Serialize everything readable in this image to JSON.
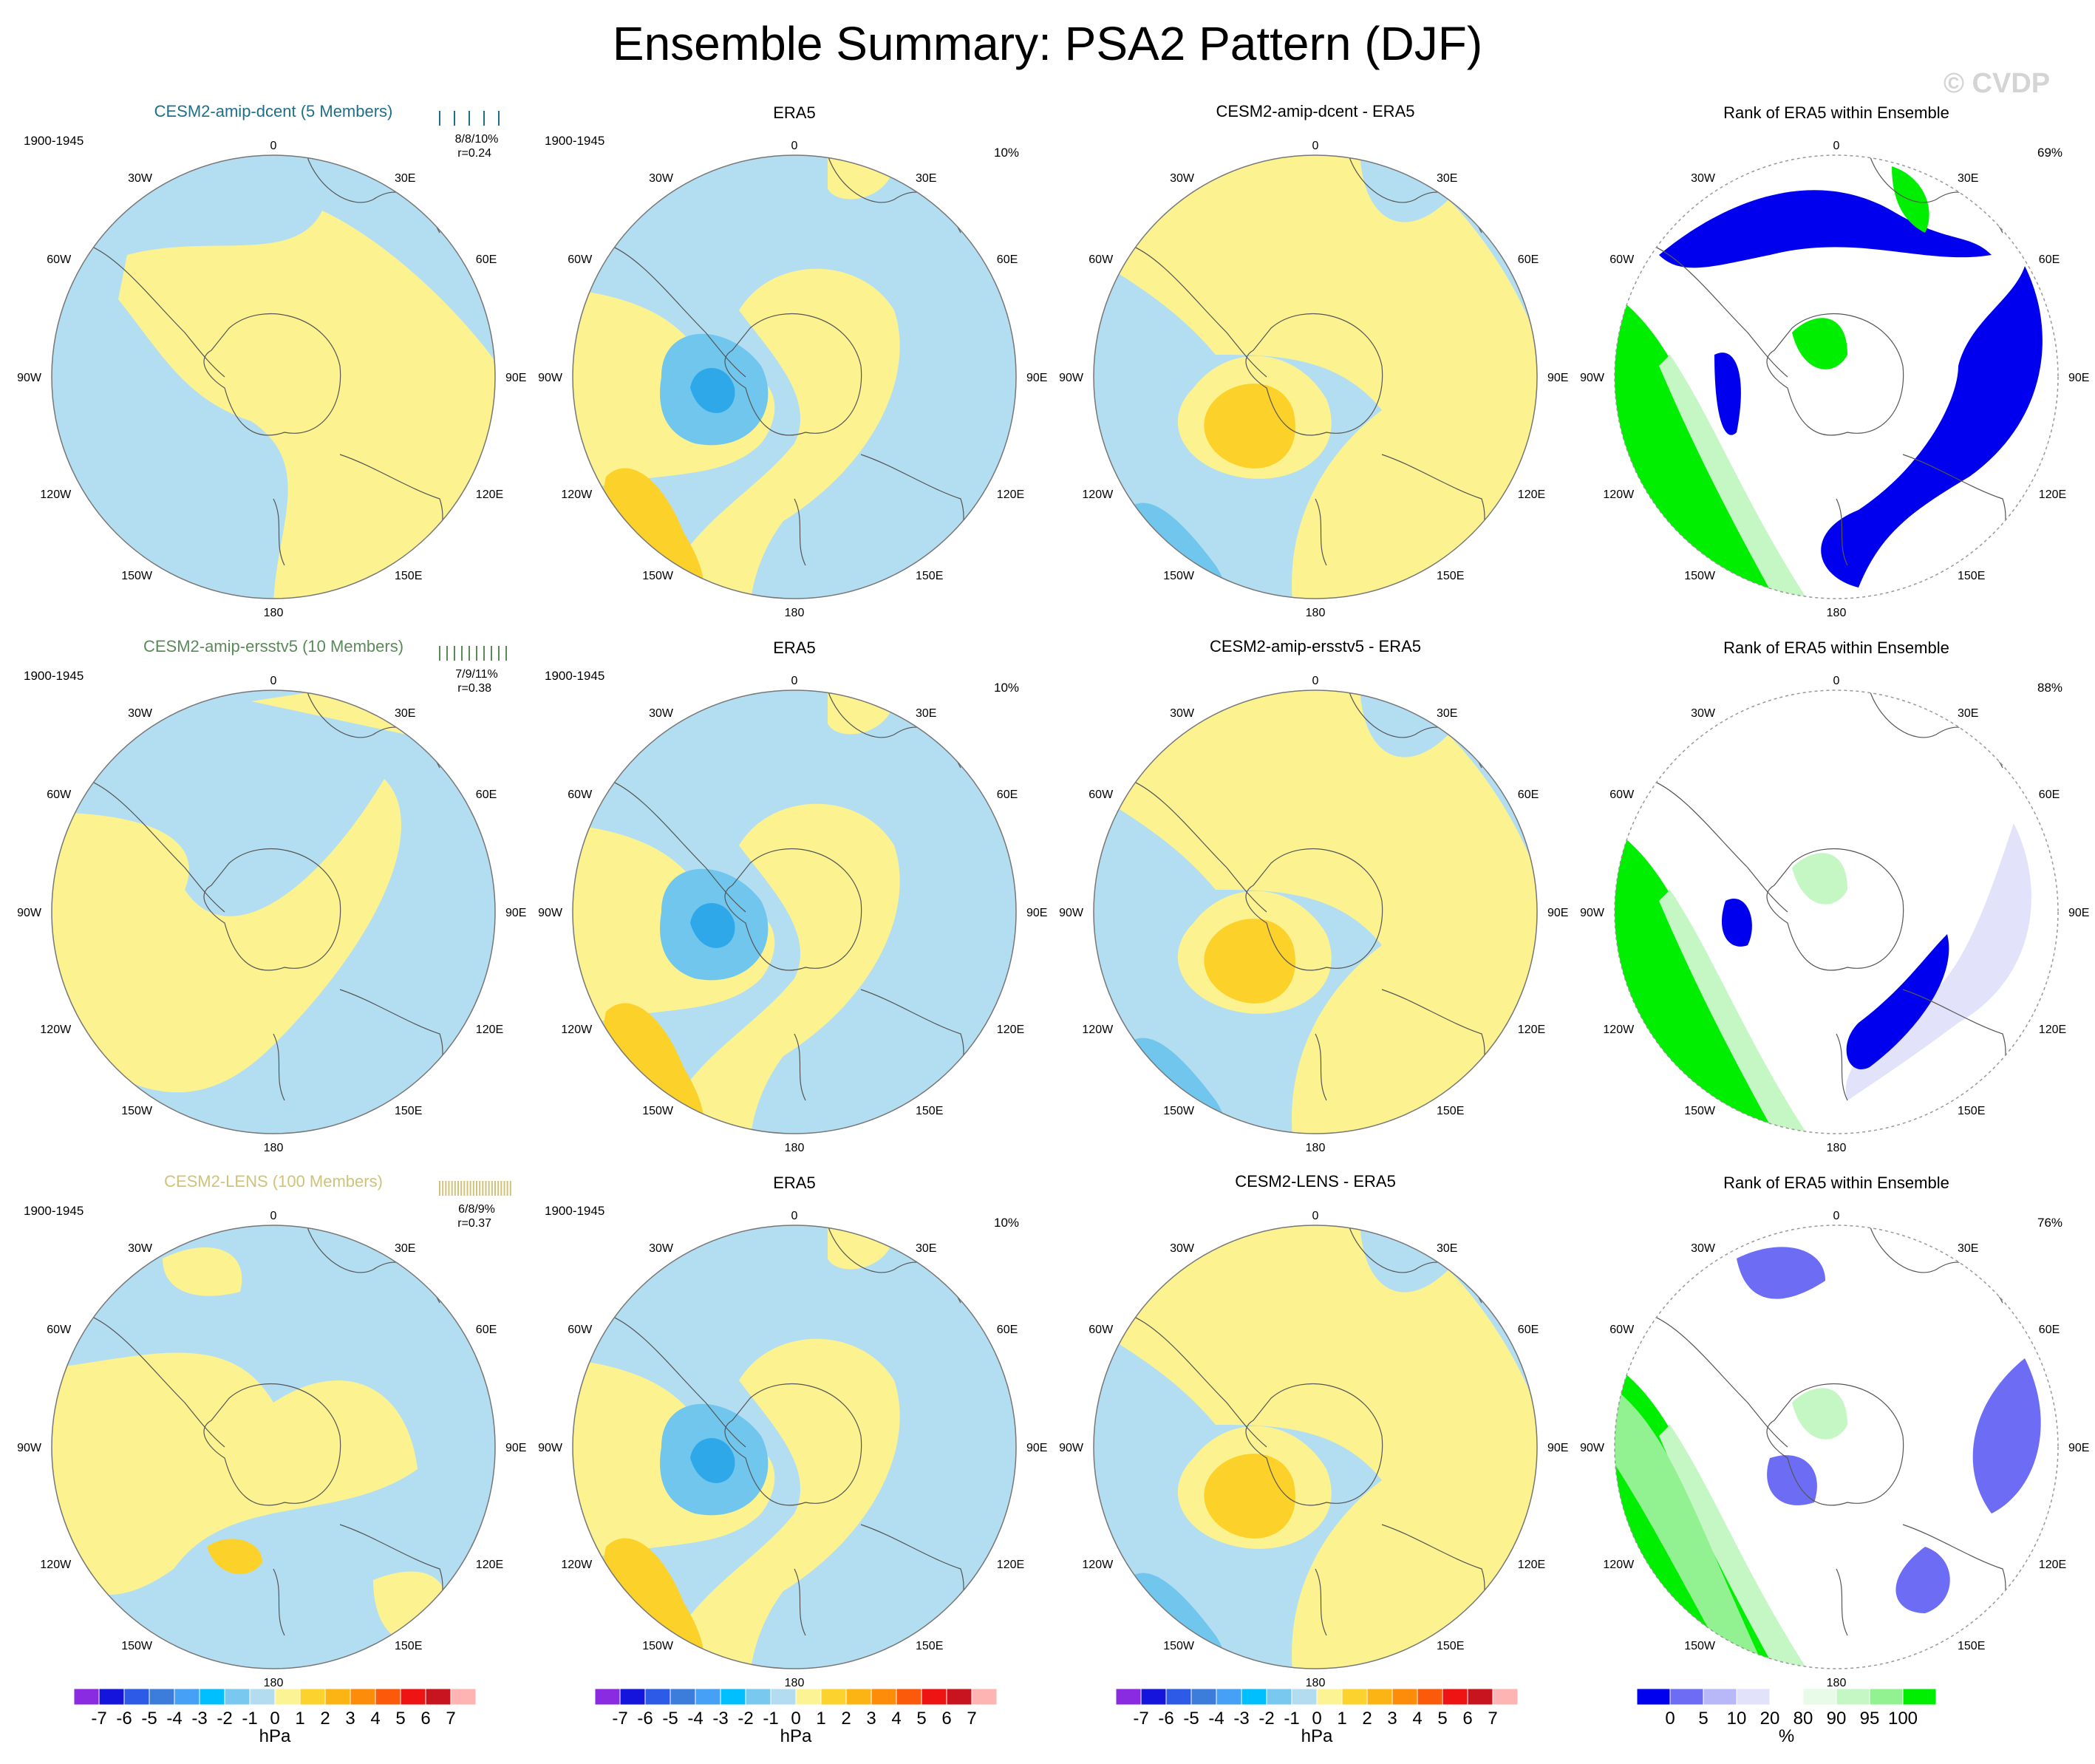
{
  "figure": {
    "title": "Ensemble Summary: PSA2 Pattern (DJF)",
    "watermark": "© CVDP"
  },
  "colors": {
    "ocean_blue": "#b3def2",
    "pale_yellow": "#fcf390",
    "gold": "#fcd12a",
    "mid_blue": "#71c6ee",
    "deep_blue": "#2fa8ea",
    "rank_blue": "#0000ee",
    "rank_mid_blue": "#6c6cf4",
    "rank_light_blue": "#b8b8f8",
    "rank_pale_blue": "#e2e2fb",
    "rank_pale_green": "#e8fbe8",
    "rank_light_green": "#c5f7c5",
    "rank_mid_green": "#92f292",
    "rank_green": "#00ee00",
    "cesm2_amip_dcent": "#1f6f8b",
    "cesm2_amip_ersstv5": "#5a8a5a",
    "cesm2_lens": "#cfc37a"
  },
  "map_labels": {
    "top": "0",
    "bottom": "180",
    "left_mid": "90W",
    "right_mid": "90E",
    "ul1": "30W",
    "ul2": "60W",
    "ur1": "30E",
    "ur2": "60E",
    "ll1": "120W",
    "ll2": "150W",
    "lr1": "120E",
    "lr2": "150E"
  },
  "rows": [
    {
      "model": "CESM2-amip-dcent (5 Members)",
      "model_color": "#1f6f8b",
      "period": "1900-1945",
      "stats": "8/8/10%",
      "corr": "r=0.24",
      "era5_title": "ERA5",
      "era5_period": "1900-1945",
      "era5_pct": "10%",
      "diff_title": "CESM2-amip-dcent - ERA5",
      "rank_title": "Rank of ERA5 within Ensemble",
      "rank_pct": "69%"
    },
    {
      "model": "CESM2-amip-ersstv5 (10 Members)",
      "model_color": "#5a8a5a",
      "period": "1900-1945",
      "stats": "7/9/11%",
      "corr": "r=0.38",
      "era5_title": "ERA5",
      "era5_period": "1900-1945",
      "era5_pct": "10%",
      "diff_title": "CESM2-amip-ersstv5 - ERA5",
      "rank_title": "Rank of ERA5 within Ensemble",
      "rank_pct": "88%"
    },
    {
      "model": "CESM2-LENS (100 Members)",
      "model_color": "#cfc37a",
      "period": "1900-1945",
      "stats": "6/8/9%",
      "corr": "r=0.37",
      "era5_title": "ERA5",
      "era5_period": "1900-1945",
      "era5_pct": "10%",
      "diff_title": "CESM2-LENS - ERA5",
      "rank_title": "Rank of ERA5 within Ensemble",
      "rank_pct": "76%"
    }
  ],
  "colorbars": {
    "hpa": {
      "unit": "hPa",
      "labels": [
        "-7",
        "-6",
        "-5",
        "-4",
        "-3",
        "-2",
        "-1",
        "0",
        "1",
        "2",
        "3",
        "4",
        "5",
        "6",
        "7"
      ],
      "colors": [
        "#8a2be2",
        "#1414dc",
        "#2d5ae6",
        "#3c7ddc",
        "#46a0f5",
        "#00bfff",
        "#78c8f0",
        "#b4dcf0",
        "#fcf394",
        "#fcd22e",
        "#fcb414",
        "#fc8c0a",
        "#fa5a0a",
        "#ee1414",
        "#c8141e",
        "#ffb4b4"
      ]
    },
    "rank": {
      "unit": "%",
      "labels": [
        "0",
        "5",
        "10",
        "20",
        "80",
        "90",
        "95",
        "100"
      ],
      "colors": [
        "#0000ee",
        "#6c6cf4",
        "#b8b8f8",
        "#e2e2fb",
        "#ffffff",
        "#e8fbe8",
        "#c5f7c5",
        "#92f292",
        "#00ee00"
      ]
    }
  }
}
